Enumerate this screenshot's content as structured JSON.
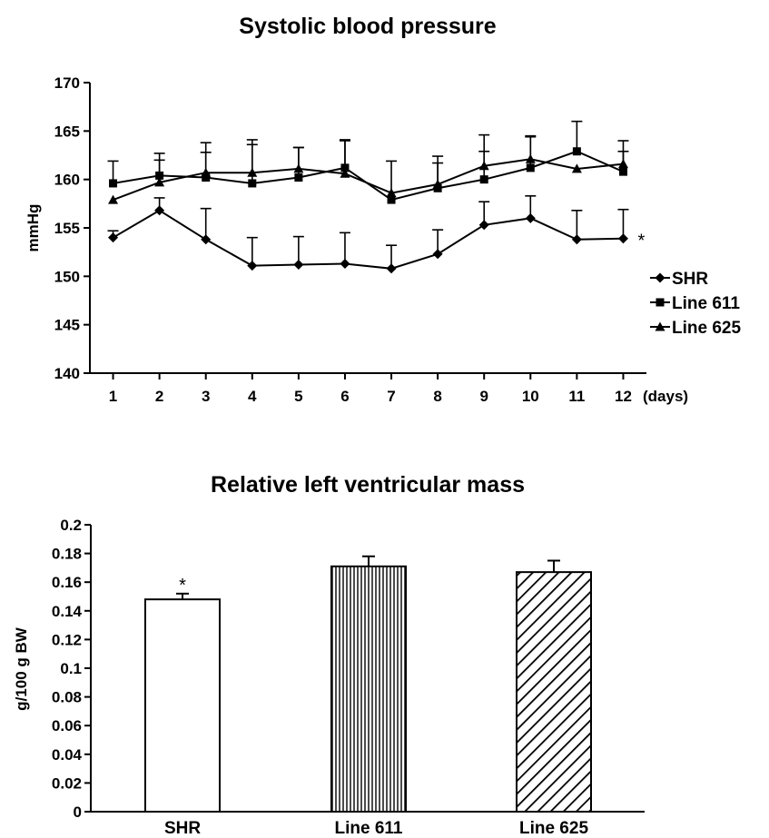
{
  "chart_data": [
    {
      "type": "line",
      "title": "Systolic blood pressure",
      "xlabel": "(days)",
      "ylabel": "mmHg",
      "x": [
        1,
        2,
        3,
        4,
        5,
        6,
        7,
        8,
        9,
        10,
        11,
        12
      ],
      "xlim": [
        0.5,
        12.5
      ],
      "ylim": [
        140,
        170
      ],
      "yticks": [
        140,
        145,
        150,
        155,
        160,
        165,
        170
      ],
      "grid": false,
      "legend_position": "right",
      "series": [
        {
          "name": "SHR",
          "marker": "diamond",
          "values": [
            154.0,
            156.8,
            153.8,
            151.1,
            151.2,
            151.3,
            150.8,
            152.3,
            155.3,
            156.0,
            153.8,
            153.9
          ],
          "errors": [
            0.7,
            1.3,
            3.2,
            2.9,
            2.9,
            3.2,
            2.4,
            2.5,
            2.4,
            2.3,
            3.0,
            3.0
          ],
          "annotation": "*"
        },
        {
          "name": "Line 611",
          "marker": "square",
          "values": [
            159.6,
            160.4,
            160.2,
            159.6,
            160.2,
            161.2,
            157.9,
            159.1,
            160.0,
            161.2,
            162.9,
            160.8
          ],
          "errors": [
            2.3,
            2.3,
            3.6,
            4.5,
            3.1,
            2.9,
            4.0,
            3.3,
            2.9,
            3.2,
            3.1,
            2.1
          ]
        },
        {
          "name": "Line 625",
          "marker": "triangle",
          "values": [
            157.9,
            159.7,
            160.7,
            160.7,
            161.1,
            160.6,
            158.6,
            159.5,
            161.4,
            162.1,
            161.1,
            161.6
          ],
          "errors": [
            0,
            2.3,
            2.1,
            2.9,
            2.2,
            3.4,
            0,
            2.2,
            3.2,
            2.4,
            0,
            2.4
          ]
        }
      ]
    },
    {
      "type": "bar",
      "title": "Relative left ventricular mass",
      "xlabel": "",
      "ylabel": "g/100 g BW",
      "categories": [
        "SHR",
        "Line 611",
        "Line 625"
      ],
      "values": [
        0.148,
        0.171,
        0.167
      ],
      "errors": [
        0.004,
        0.007,
        0.008
      ],
      "annotations": [
        "*",
        "",
        ""
      ],
      "patterns": [
        "none",
        "vertical-lines",
        "diagonal-lines"
      ],
      "ylim": [
        0,
        0.2
      ],
      "yticks": [
        "0",
        "0.02",
        "0.04",
        "0.06",
        "0.08",
        "0.1",
        "0.12",
        "0.14",
        "0.16",
        "0.18",
        "0.2"
      ],
      "grid": false
    }
  ]
}
